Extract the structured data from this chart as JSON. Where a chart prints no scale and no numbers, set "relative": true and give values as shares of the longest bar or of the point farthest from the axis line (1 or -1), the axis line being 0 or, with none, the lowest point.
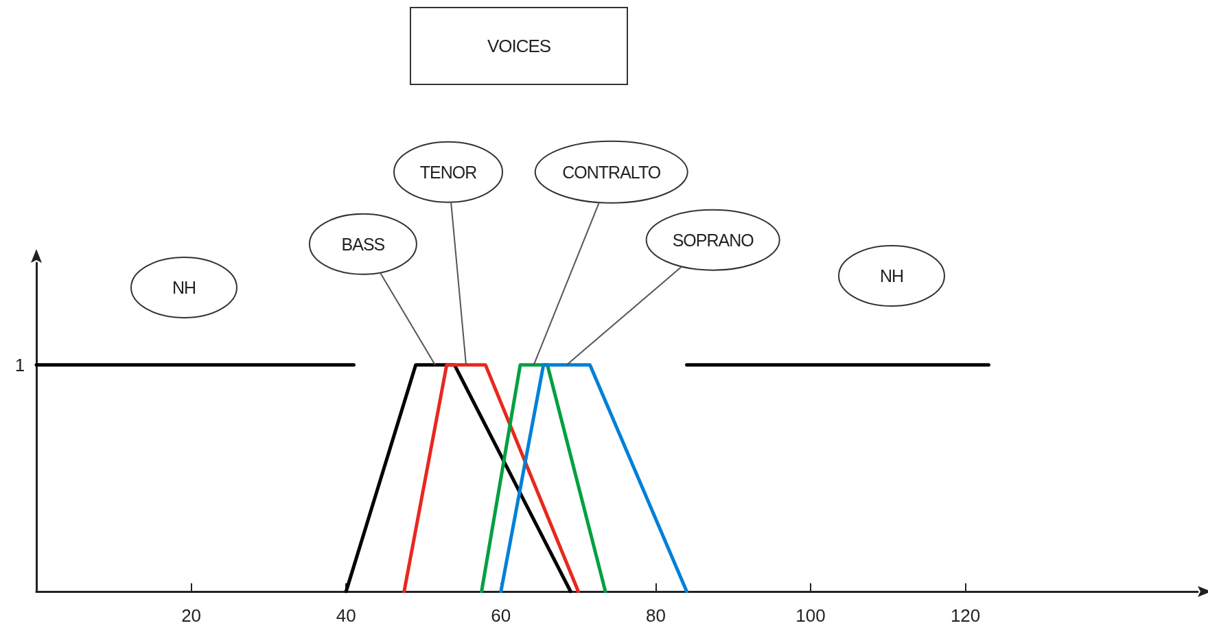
{
  "chart_data": {
    "type": "line",
    "title": "VOICES",
    "xlim": [
      0,
      150
    ],
    "xticks": [
      20,
      40,
      60,
      80,
      100,
      120
    ],
    "relative": true,
    "annotations": [
      "1",
      "NH",
      "NH"
    ],
    "grid": false,
    "legend": false,
    "marker": "none",
    "line_style": "solid",
    "series": [
      {
        "color": "#000000",
        "x": [
          0,
          41
        ],
        "values": [
          1,
          1
        ]
      },
      {
        "name": "BASS",
        "color": "#000000",
        "x": [
          40,
          49,
          54,
          69
        ],
        "values": [
          0,
          1,
          1,
          0
        ]
      },
      {
        "name": "TENOR",
        "color": "#e8281e",
        "x": [
          47.5,
          53,
          58,
          70
        ],
        "values": [
          0,
          1,
          1,
          0
        ]
      },
      {
        "name": "CONTRALTO",
        "color": "#00a040",
        "x": [
          57.5,
          62.5,
          66,
          73.5
        ],
        "values": [
          0,
          1,
          1,
          0
        ]
      },
      {
        "name": "SOPRANO",
        "color": "#0080d8",
        "x": [
          60,
          65.5,
          71.5,
          84
        ],
        "values": [
          0,
          1,
          1,
          0
        ]
      },
      {
        "color": "#000000",
        "x": [
          84,
          123
        ],
        "values": [
          1,
          1
        ]
      }
    ]
  }
}
